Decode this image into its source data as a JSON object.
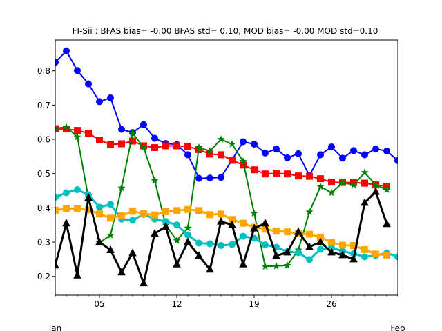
{
  "chart_data": {
    "type": "line",
    "title": "FI-Sii   : BFAS bias= -0.00 BFAS std= 0.10; MOD bias= -0.00 MOD std=0.10",
    "xlabel": "",
    "ylabel": "",
    "x_start": "2018-01-01",
    "x_ticks": [
      {
        "day": 5,
        "label": "05"
      },
      {
        "day": 12,
        "label": "12"
      },
      {
        "day": 19,
        "label": "19"
      },
      {
        "day": 26,
        "label": "26"
      }
    ],
    "x_sublabels": [
      {
        "day": 1,
        "label": "Jan"
      },
      {
        "day": 32,
        "label": "Feb"
      }
    ],
    "xlim": [
      1,
      32
    ],
    "ylim": [
      0.145,
      0.89
    ],
    "y_ticks": [
      0.2,
      0.3,
      0.4,
      0.5,
      0.6,
      0.7,
      0.8
    ],
    "grid": false,
    "x_days": [
      1,
      2,
      3,
      4,
      5,
      6,
      7,
      8,
      9,
      10,
      11,
      12,
      13,
      14,
      15,
      16,
      17,
      18,
      19,
      20,
      21,
      22,
      23,
      24,
      25,
      26,
      27,
      28,
      29,
      30,
      31,
      32
    ],
    "series": [
      {
        "color": "#0000ff",
        "marker": "circle",
        "linewidth": 2,
        "values": [
          0.825,
          0.858,
          0.801,
          0.762,
          0.71,
          0.721,
          0.629,
          0.62,
          0.643,
          0.603,
          0.588,
          0.585,
          0.555,
          0.486,
          0.487,
          0.489,
          0.54,
          0.593,
          0.586,
          0.56,
          0.572,
          0.546,
          0.558,
          0.494,
          0.555,
          0.578,
          0.545,
          0.567,
          0.555,
          0.572,
          0.566,
          0.538
        ]
      },
      {
        "color": "#ff0000",
        "marker": "square",
        "linewidth": 2,
        "values": [
          0.631,
          0.63,
          0.626,
          0.618,
          0.598,
          0.585,
          0.587,
          0.595,
          0.581,
          0.576,
          0.581,
          0.581,
          0.579,
          0.57,
          0.557,
          0.555,
          0.539,
          0.525,
          0.511,
          0.499,
          0.501,
          0.499,
          0.493,
          0.492,
          0.485,
          0.475,
          0.474,
          0.474,
          0.472,
          0.467,
          0.463,
          null
        ]
      },
      {
        "color": "#008000",
        "marker": "star",
        "linewidth": 2,
        "values": [
          0.632,
          0.636,
          0.607,
          0.429,
          0.298,
          0.32,
          0.458,
          0.618,
          0.576,
          0.48,
          0.349,
          0.305,
          0.341,
          0.576,
          0.566,
          0.6,
          0.586,
          0.536,
          0.384,
          0.229,
          0.23,
          0.232,
          0.277,
          0.388,
          0.462,
          0.444,
          0.473,
          0.467,
          0.503,
          0.467,
          0.453,
          null
        ]
      },
      {
        "color": "#00bfbf",
        "marker": "circle",
        "linewidth": 3,
        "values": [
          0.431,
          0.444,
          0.453,
          0.438,
          0.402,
          0.41,
          0.367,
          0.364,
          0.381,
          0.367,
          0.36,
          0.35,
          0.321,
          0.297,
          0.295,
          0.29,
          0.293,
          0.317,
          0.311,
          0.292,
          0.285,
          0.272,
          0.269,
          0.249,
          0.279,
          0.283,
          0.274,
          0.266,
          0.257,
          0.261,
          0.268,
          0.257
        ]
      },
      {
        "color": "#ffa500",
        "marker": "square",
        "linewidth": 3,
        "values": [
          0.393,
          0.398,
          0.398,
          0.394,
          0.382,
          0.37,
          0.377,
          0.39,
          0.383,
          0.379,
          0.389,
          0.392,
          0.395,
          0.392,
          0.38,
          0.382,
          0.366,
          0.355,
          0.343,
          0.338,
          0.332,
          0.33,
          0.325,
          0.323,
          0.314,
          0.299,
          0.291,
          0.29,
          0.278,
          0.265,
          0.262,
          null
        ]
      },
      {
        "color": "#000000",
        "marker": "triangle",
        "linewidth": 3,
        "values": [
          0.232,
          0.355,
          0.203,
          0.43,
          0.3,
          0.277,
          0.212,
          0.268,
          0.18,
          0.325,
          0.345,
          0.235,
          0.3,
          0.26,
          0.22,
          0.36,
          0.35,
          0.235,
          0.34,
          0.355,
          0.26,
          0.27,
          0.33,
          0.286,
          0.3,
          0.27,
          0.262,
          0.25,
          0.415,
          0.447,
          0.353,
          null
        ]
      }
    ]
  }
}
